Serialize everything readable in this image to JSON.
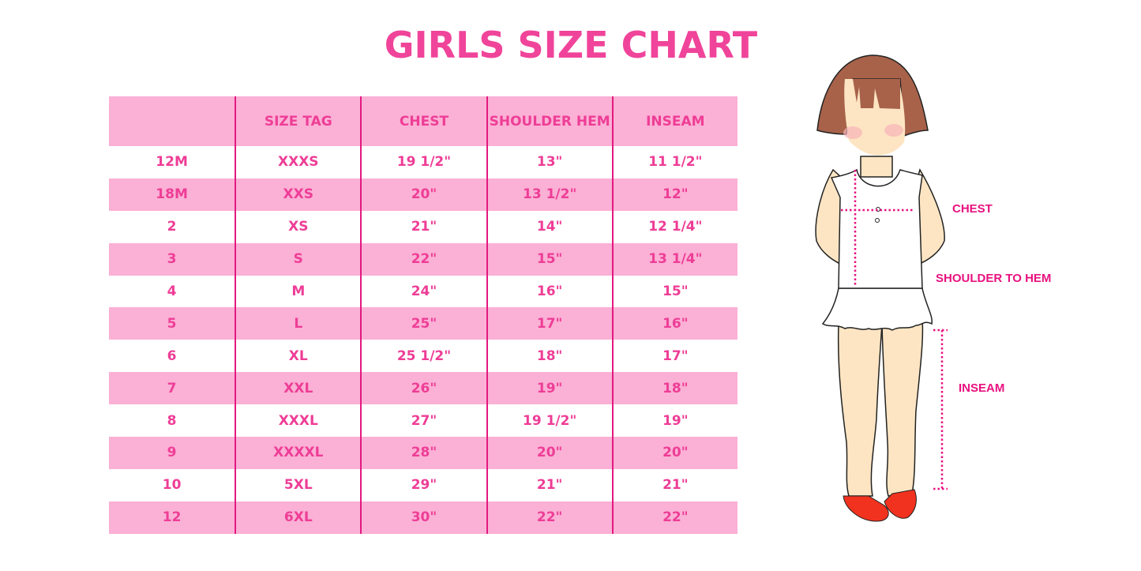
{
  "title": "GIRLS SIZE CHART",
  "table": {
    "headers": [
      "",
      "SIZE TAG",
      "CHEST",
      "SHOULDER HEM",
      "INSEAM"
    ],
    "rows": [
      [
        "12M",
        "XXXS",
        "19 1/2\"",
        "13\"",
        "11 1/2\""
      ],
      [
        "18M",
        "XXS",
        "20\"",
        "13 1/2\"",
        "12\""
      ],
      [
        "2",
        "XS",
        "21\"",
        "14\"",
        "12 1/4\""
      ],
      [
        "3",
        "S",
        "22\"",
        "15\"",
        "13 1/4\""
      ],
      [
        "4",
        "M",
        "24\"",
        "16\"",
        "15\""
      ],
      [
        "5",
        "L",
        "25\"",
        "17\"",
        "16\""
      ],
      [
        "6",
        "XL",
        "25 1/2\"",
        "18\"",
        "17\""
      ],
      [
        "7",
        "XXL",
        "26\"",
        "19\"",
        "18\""
      ],
      [
        "8",
        "XXXL",
        "27\"",
        "19 1/2\"",
        "19\""
      ],
      [
        "9",
        "XXXXL",
        "28\"",
        "20\"",
        "20\""
      ],
      [
        "10",
        "5XL",
        "29\"",
        "21\"",
        "21\""
      ],
      [
        "12",
        "6XL",
        "30\"",
        "22\"",
        "22\""
      ]
    ]
  },
  "figure": {
    "labels": {
      "chest": "CHEST",
      "shoulder_to_hem": "SHOULDER TO HEM",
      "inseam": "INSEAM"
    }
  },
  "colors": {
    "title": "#f0449a",
    "row_fill": "#fbb0d5",
    "divider": "#e2197f",
    "measure": "#e8117f"
  }
}
